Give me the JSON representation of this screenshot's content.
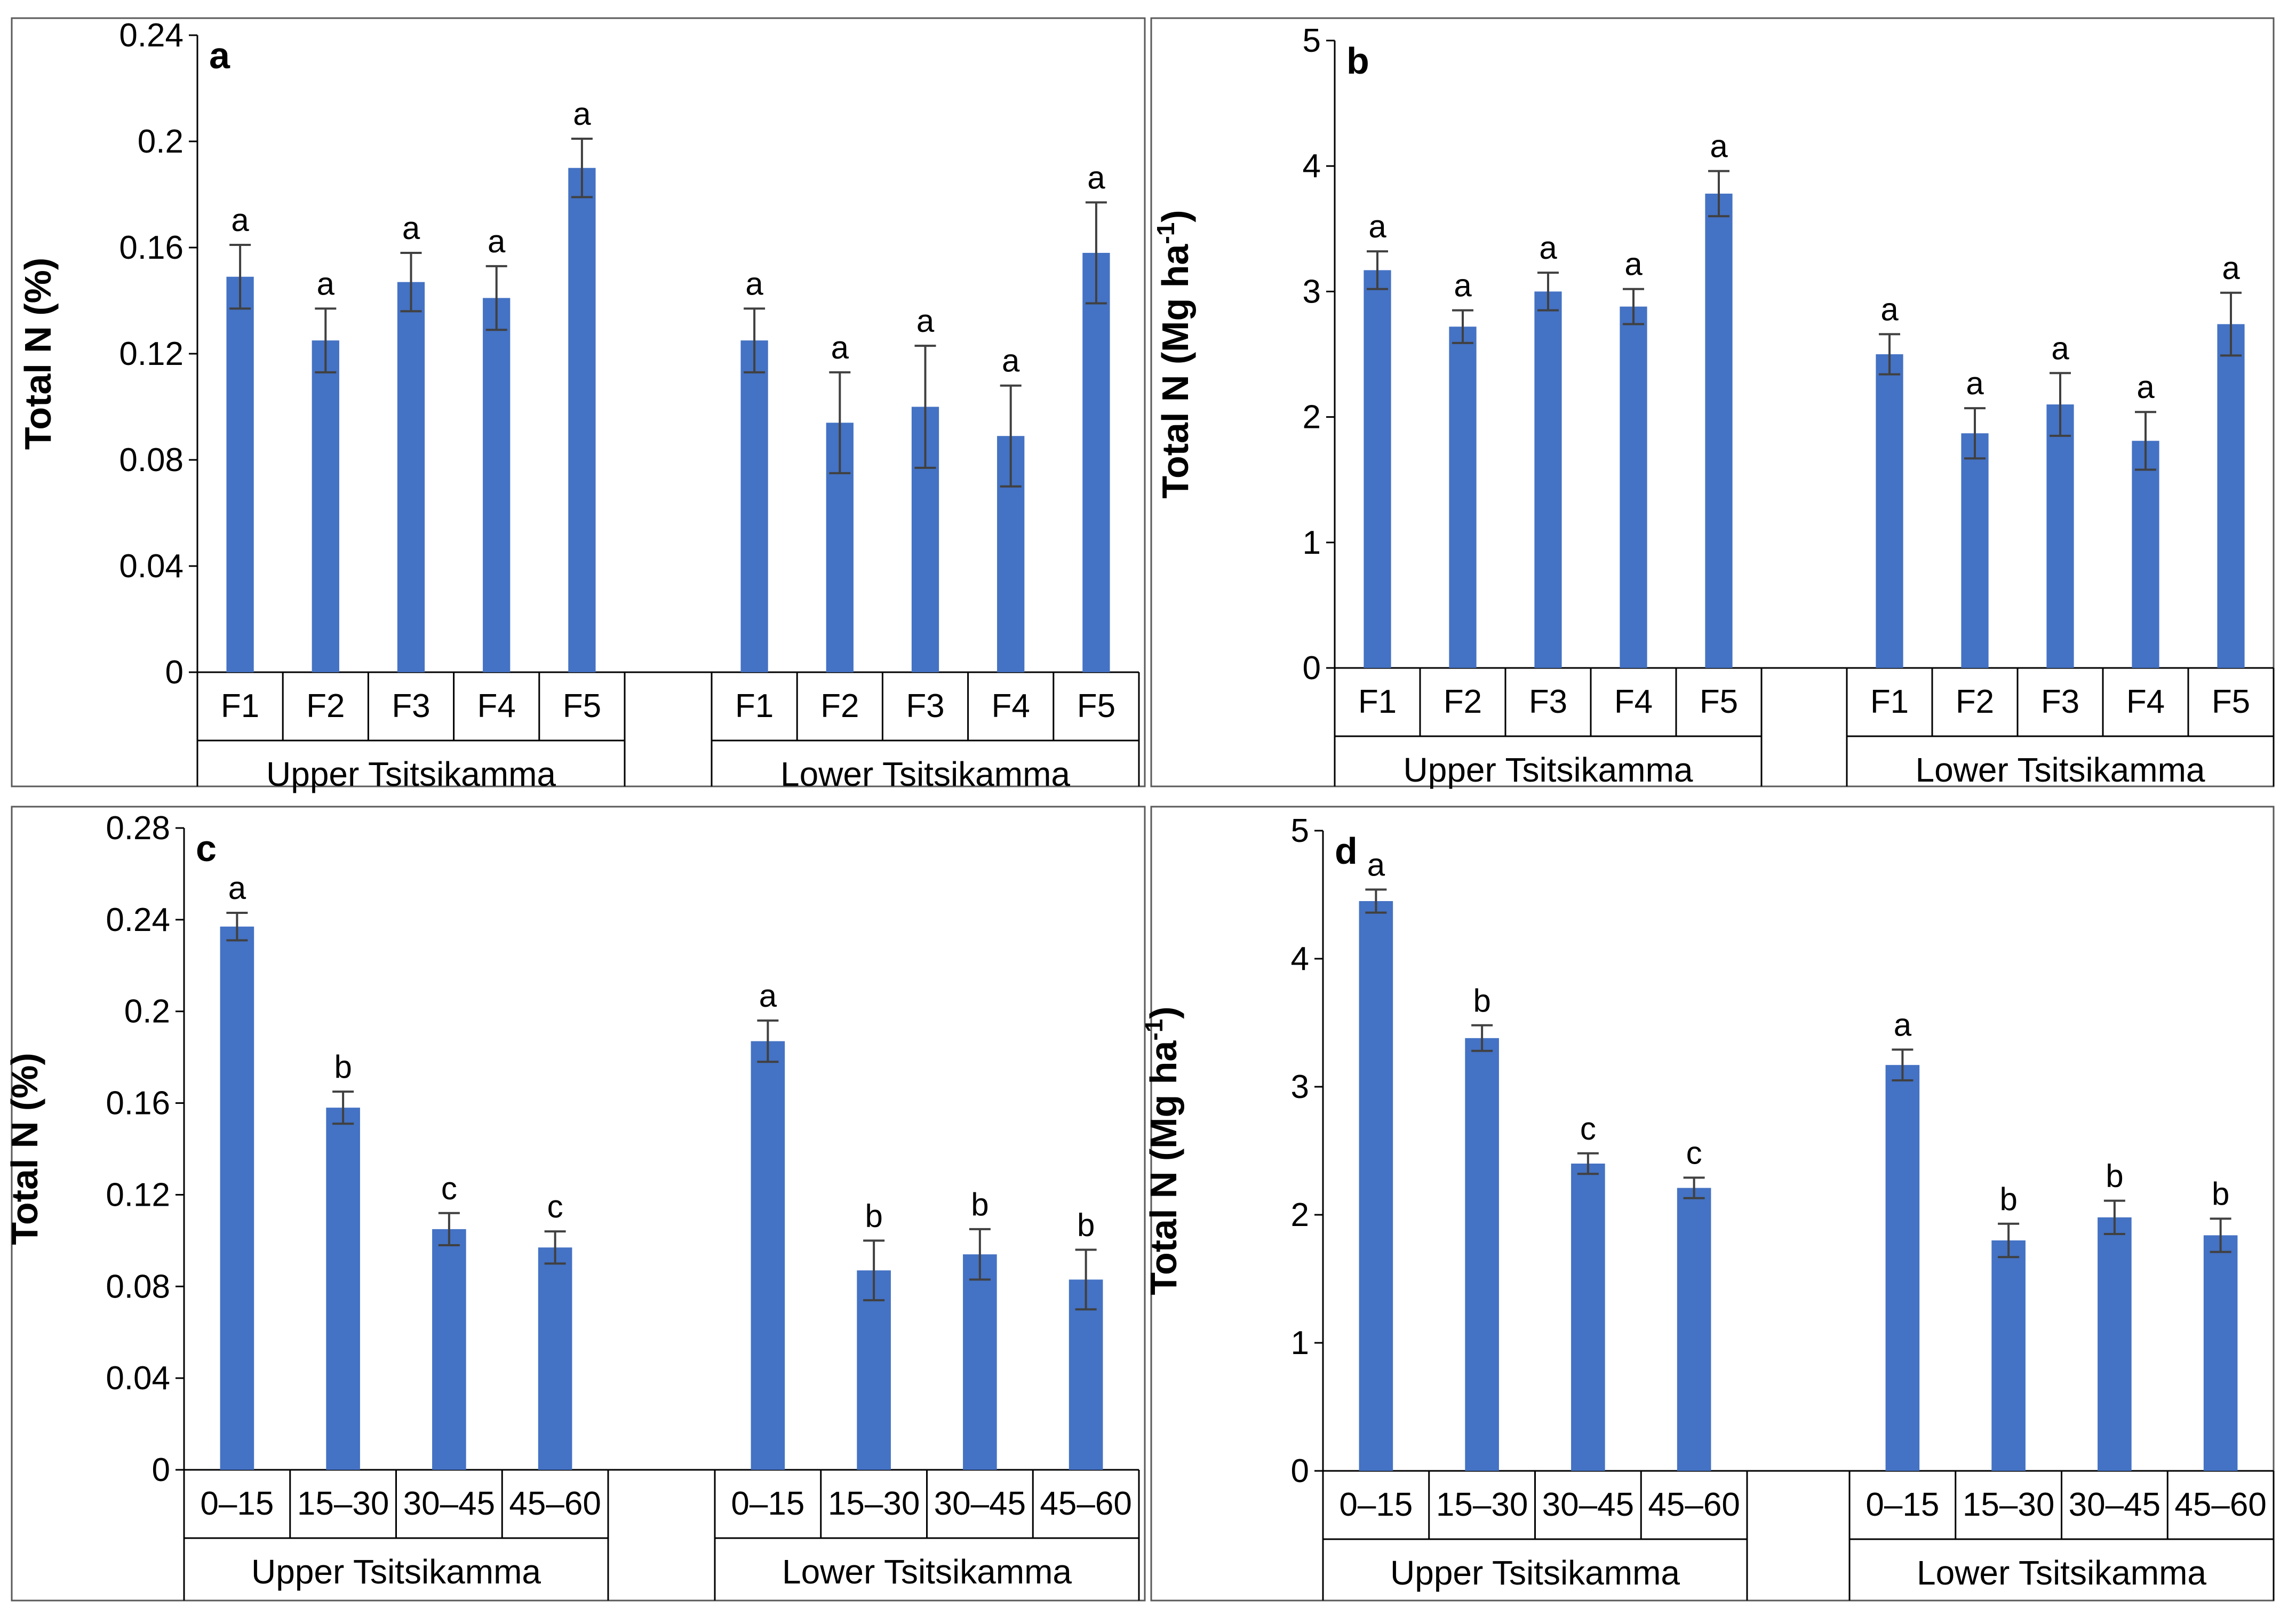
{
  "colors": {
    "bar": "#4472c4",
    "error_bar": "#404040",
    "axis": "#000000",
    "frame": "#5a5a5a"
  },
  "chart_data": [
    {
      "panel": "a",
      "type": "bar",
      "ylabel": "Total N (%)",
      "ylim": [
        0,
        0.24
      ],
      "yticks": [
        "0",
        "0.04",
        "0.08",
        "0.12",
        "0.16",
        "0.2",
        "0.24"
      ],
      "groups": [
        {
          "name": "Upper Tsitsikamma",
          "categories": [
            "F1",
            "F2",
            "F3",
            "F4",
            "F5"
          ],
          "values": [
            0.149,
            0.125,
            0.147,
            0.141,
            0.19
          ],
          "errors": [
            0.012,
            0.012,
            0.011,
            0.012,
            0.011
          ],
          "letters": [
            "a",
            "a",
            "a",
            "a",
            "a"
          ]
        },
        {
          "name": "Lower Tsitsikamma",
          "categories": [
            "F1",
            "F2",
            "F3",
            "F4",
            "F5"
          ],
          "values": [
            0.125,
            0.094,
            0.1,
            0.089,
            0.158
          ],
          "errors": [
            0.012,
            0.019,
            0.023,
            0.019,
            0.019
          ],
          "letters": [
            "a",
            "a",
            "a",
            "a",
            "a"
          ]
        }
      ]
    },
    {
      "panel": "b",
      "type": "bar",
      "ylabel": "Total N (Mg ha",
      "ylabel_sup": "-1",
      "ylabel_close": ")",
      "ylim": [
        0,
        5
      ],
      "yticks": [
        "0",
        "1",
        "2",
        "3",
        "4",
        "5"
      ],
      "groups": [
        {
          "name": "Upper Tsitsikamma",
          "categories": [
            "F1",
            "F2",
            "F3",
            "F4",
            "F5"
          ],
          "values": [
            3.17,
            2.72,
            3.0,
            2.88,
            3.78
          ],
          "errors": [
            0.15,
            0.13,
            0.15,
            0.14,
            0.18
          ],
          "letters": [
            "a",
            "a",
            "a",
            "a",
            "a"
          ]
        },
        {
          "name": "Lower Tsitsikamma",
          "categories": [
            "F1",
            "F2",
            "F3",
            "F4",
            "F5"
          ],
          "values": [
            2.5,
            1.87,
            2.1,
            1.81,
            2.74
          ],
          "errors": [
            0.16,
            0.2,
            0.25,
            0.23,
            0.25
          ],
          "letters": [
            "a",
            "a",
            "a",
            "a",
            "a"
          ]
        }
      ]
    },
    {
      "panel": "c",
      "type": "bar",
      "ylabel": "Total  N (%)",
      "ylim": [
        0,
        0.28
      ],
      "yticks": [
        "0",
        "0.04",
        "0.08",
        "0.12",
        "0.16",
        "0.2",
        "0.24",
        "0.28"
      ],
      "groups": [
        {
          "name": "Upper Tsitsikamma",
          "categories": [
            "0–15",
            "15–30",
            "30–45",
            "45–60"
          ],
          "values": [
            0.237,
            0.158,
            0.105,
            0.097
          ],
          "errors": [
            0.006,
            0.007,
            0.007,
            0.007
          ],
          "letters": [
            "a",
            "b",
            "c",
            "c"
          ]
        },
        {
          "name": "Lower Tsitsikamma",
          "categories": [
            "0–15",
            "15–30",
            "30–45",
            "45–60"
          ],
          "values": [
            0.187,
            0.087,
            0.094,
            0.083
          ],
          "errors": [
            0.009,
            0.013,
            0.011,
            0.013
          ],
          "letters": [
            "a",
            "b",
            "b",
            "b"
          ]
        }
      ]
    },
    {
      "panel": "d",
      "type": "bar",
      "ylabel": "Total N (Mg ha",
      "ylabel_sup": "-1",
      "ylabel_close": ")",
      "ylim": [
        0,
        5
      ],
      "yticks": [
        "0",
        "1",
        "2",
        "3",
        "4",
        "5"
      ],
      "groups": [
        {
          "name": "Upper Tsitsikamma",
          "categories": [
            "0–15",
            "15–30",
            "30–45",
            "45–60"
          ],
          "values": [
            4.45,
            3.38,
            2.4,
            2.21
          ],
          "errors": [
            0.09,
            0.1,
            0.08,
            0.08
          ],
          "letters": [
            "a",
            "b",
            "c",
            "c"
          ]
        },
        {
          "name": "Lower Tsitsikamma",
          "categories": [
            "0–15",
            "15–30",
            "30–45",
            "45–60"
          ],
          "values": [
            3.17,
            1.8,
            1.98,
            1.84
          ],
          "errors": [
            0.12,
            0.13,
            0.13,
            0.13
          ],
          "letters": [
            "a",
            "b",
            "b",
            "b"
          ]
        }
      ]
    }
  ]
}
